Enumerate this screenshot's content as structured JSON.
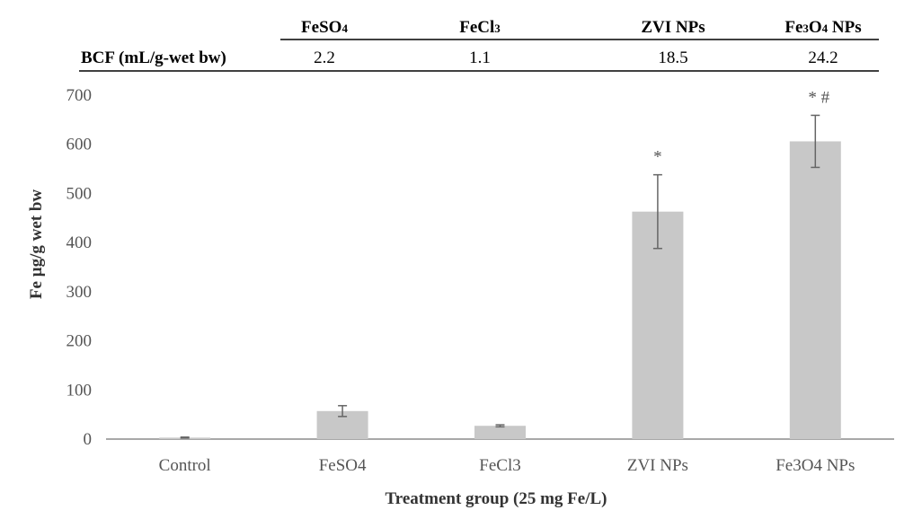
{
  "table": {
    "row_label": "BCF (mL/g-wet bw)",
    "columns": [
      {
        "head_main": "FeSO",
        "head_sub": "4",
        "head_tail": "",
        "value": "2.2"
      },
      {
        "head_main": "FeCl",
        "head_sub": "3",
        "head_tail": "",
        "value": "1.1"
      },
      {
        "head_main": "ZVI NPs",
        "head_sub": "",
        "head_tail": "",
        "value": "18.5"
      },
      {
        "head_main": "Fe",
        "head_sub": "3",
        "head_mid": "O",
        "head_sub2": "4",
        "head_tail": " NPs",
        "value": "24.2"
      }
    ]
  },
  "chart_data": {
    "type": "bar",
    "categories": [
      "Control",
      "FeSO4",
      "FeCl3",
      "ZVI NPs",
      "Fe3O4 NPs"
    ],
    "values": [
      3,
      57,
      27,
      463,
      606
    ],
    "errors": [
      1,
      11,
      2,
      75,
      53
    ],
    "annotations": [
      "",
      "",
      "",
      "*",
      "* #"
    ],
    "xlabel": "Treatment group (25 mg Fe/L)",
    "ylabel": "Fe µg/g wet bw",
    "ylim": [
      0,
      700
    ],
    "yticks": [
      0,
      100,
      200,
      300,
      400,
      500,
      600,
      700
    ],
    "grid": false,
    "colors": {
      "bar": "#c8c8c8",
      "axis": "#8c8c8c",
      "error": "#666666"
    }
  }
}
